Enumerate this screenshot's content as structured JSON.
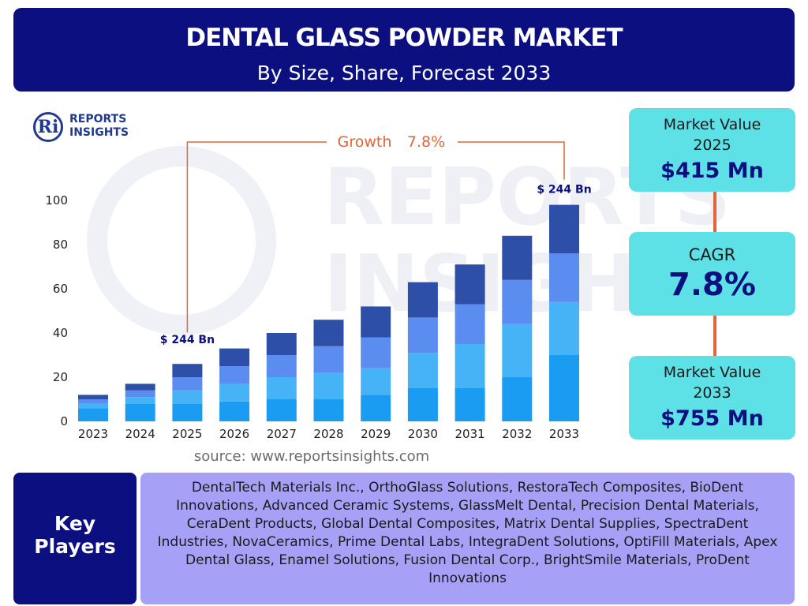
{
  "header": {
    "title": "DENTAL GLASS POWDER MARKET",
    "subtitle": "By Size, Share, Forecast 2033"
  },
  "logo": {
    "line1": "REPORTS",
    "line2": "INSIGHTS",
    "mark": "Ri"
  },
  "chart_data": {
    "type": "bar",
    "stacked": true,
    "categories": [
      "2023",
      "2024",
      "2025",
      "2026",
      "2027",
      "2028",
      "2029",
      "2030",
      "2031",
      "2032",
      "2033"
    ],
    "series": [
      {
        "values": [
          6,
          8,
          8,
          9,
          10,
          10,
          12,
          15,
          15,
          20,
          30
        ]
      },
      {
        "values": [
          2,
          3,
          6,
          8,
          10,
          12,
          12,
          16,
          20,
          24,
          24
        ]
      },
      {
        "values": [
          2,
          3,
          6,
          8,
          10,
          12,
          14,
          16,
          18,
          20,
          22
        ]
      },
      {
        "values": [
          2,
          3,
          6,
          8,
          10,
          12,
          14,
          16,
          18,
          20,
          22
        ]
      }
    ],
    "series_colors": [
      "#1a9cf2",
      "#47b3f7",
      "#5b8df0",
      "#2e4fa8"
    ],
    "yticks": [
      0,
      20,
      40,
      60,
      80,
      100
    ],
    "ylim": [
      0,
      100
    ],
    "grid": false,
    "annotations": {
      "start_label": "$ 244 Bn",
      "end_label": "$ 244 Bn",
      "growth_label": "Growth",
      "growth_value": "7.8%"
    },
    "annotation_color": "#e2653a",
    "label_color": "#0b0f7f"
  },
  "source": "source: www.reportsinsights.com",
  "side": {
    "market_value_1_label_line1": "Market Value",
    "market_value_1_label_line2": "2025",
    "market_value_1": "$415 Mn",
    "cagr_label": "CAGR",
    "cagr_value": "7.8%",
    "market_value_2_label_line1": "Market Value",
    "market_value_2_label_line2": "2033",
    "market_value_2": "$755 Mn"
  },
  "key_players": {
    "label_line1": "Key",
    "label_line2": "Players",
    "text": "DentalTech Materials Inc., OrthoGlass Solutions, RestoraTech Composites, BioDent Innovations, Advanced Ceramic Systems, GlassMelt Dental, Precision Dental Materials, CeraDent Products, Global Dental Composites, Matrix Dental Supplies, SpectraDent Industries, NovaCeramics, Prime Dental Labs, IntegraDent Solutions, OptiFill Materials, Apex Dental Glass, Enamel Solutions, Fusion Dental Corp., BrightSmile Materials, ProDent Innovations"
  },
  "colors": {
    "header_bg": "#0b0f7f",
    "side_box_bg": "#5de0e6",
    "connector": "#e2653a",
    "key_players_bg": "#a6a1f6"
  }
}
